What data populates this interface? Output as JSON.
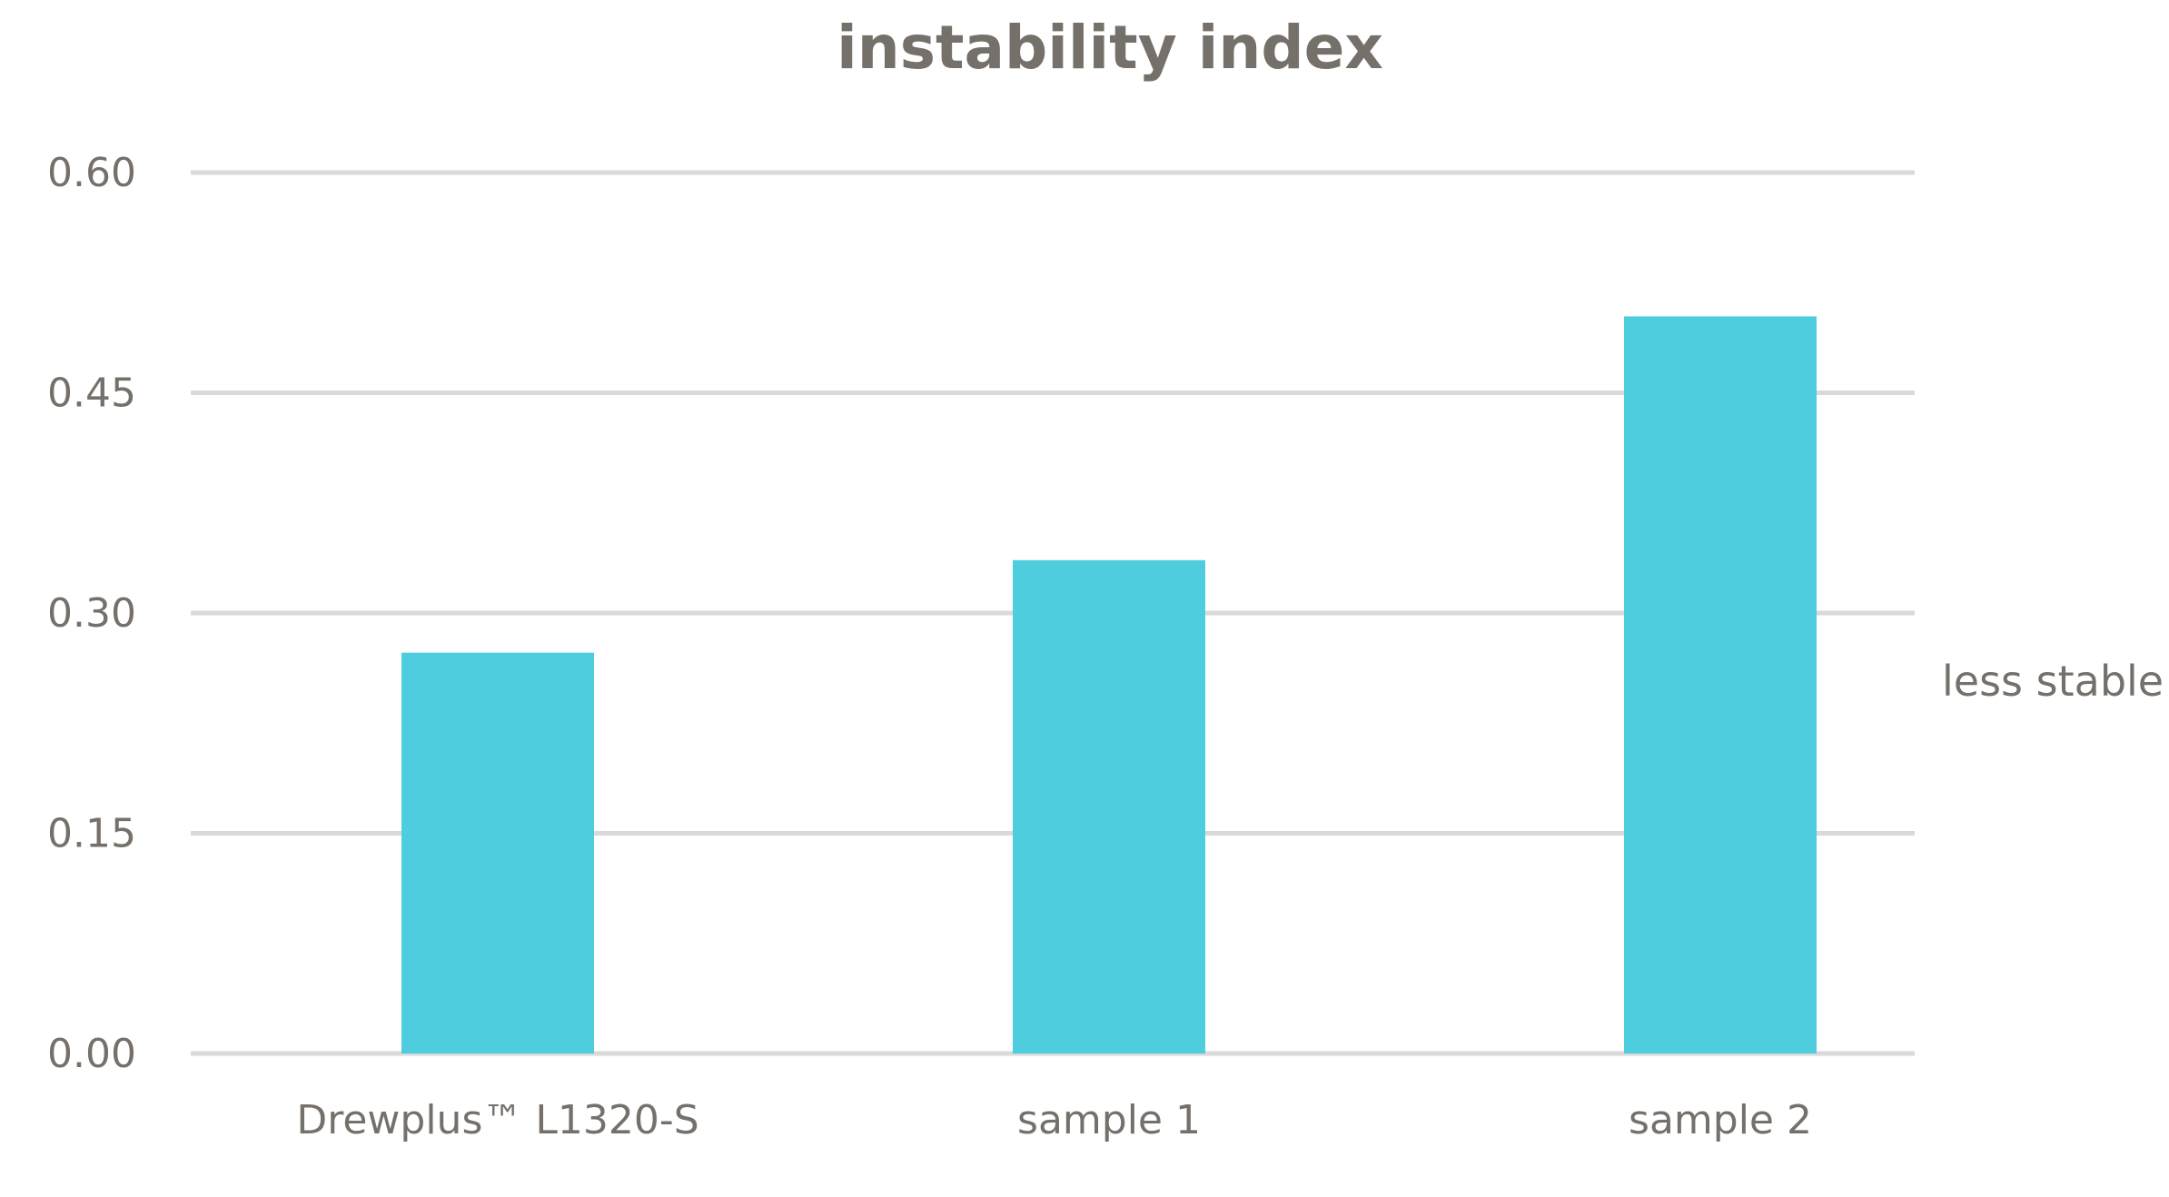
{
  "chart_data": {
    "type": "bar",
    "title": "instability index",
    "xlabel": "",
    "ylabel": "",
    "categories": [
      "Drewplus™ L1320-S",
      "sample 1",
      "sample 2"
    ],
    "values": [
      0.273,
      0.336,
      0.502
    ],
    "ylim": [
      0,
      0.6
    ],
    "yticks": [
      "0.00",
      "0.15",
      "0.30",
      "0.45",
      "0.60"
    ],
    "ytick_values": [
      0,
      0.15,
      0.3,
      0.45,
      0.6
    ],
    "grid": true,
    "legend": "none",
    "annotation": "less stable",
    "colors": {
      "bar": "#4dcddd",
      "grid": "#d9d9d9",
      "text": "#76706b"
    }
  }
}
